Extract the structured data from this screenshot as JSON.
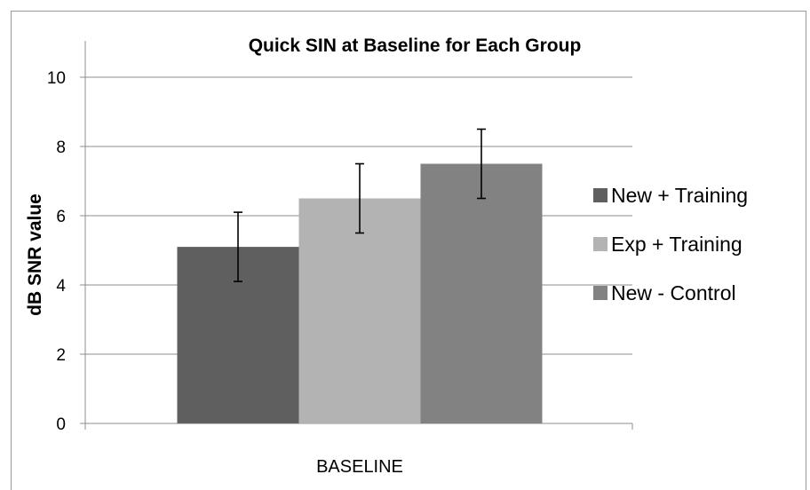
{
  "chart_data": {
    "type": "bar",
    "title": "Quick SIN at Baseline for Each Group",
    "xlabel": "",
    "ylabel": "dB SNR value",
    "categories": [
      "BASELINE"
    ],
    "ylim": [
      0,
      10
    ],
    "yticks": [
      "0",
      "2",
      "4",
      "6",
      "8",
      "10"
    ],
    "grid": "horizontal",
    "legend_position": "right",
    "series": [
      {
        "name": "New + Training",
        "values": [
          5.1
        ],
        "error": [
          1.0
        ],
        "color": "#5f5f5f"
      },
      {
        "name": "Exp + Training",
        "values": [
          6.5
        ],
        "error": [
          1.0
        ],
        "color": "#b3b3b3"
      },
      {
        "name": "New - Control",
        "values": [
          7.5
        ],
        "error": [
          1.0
        ],
        "color": "#828282"
      }
    ]
  }
}
